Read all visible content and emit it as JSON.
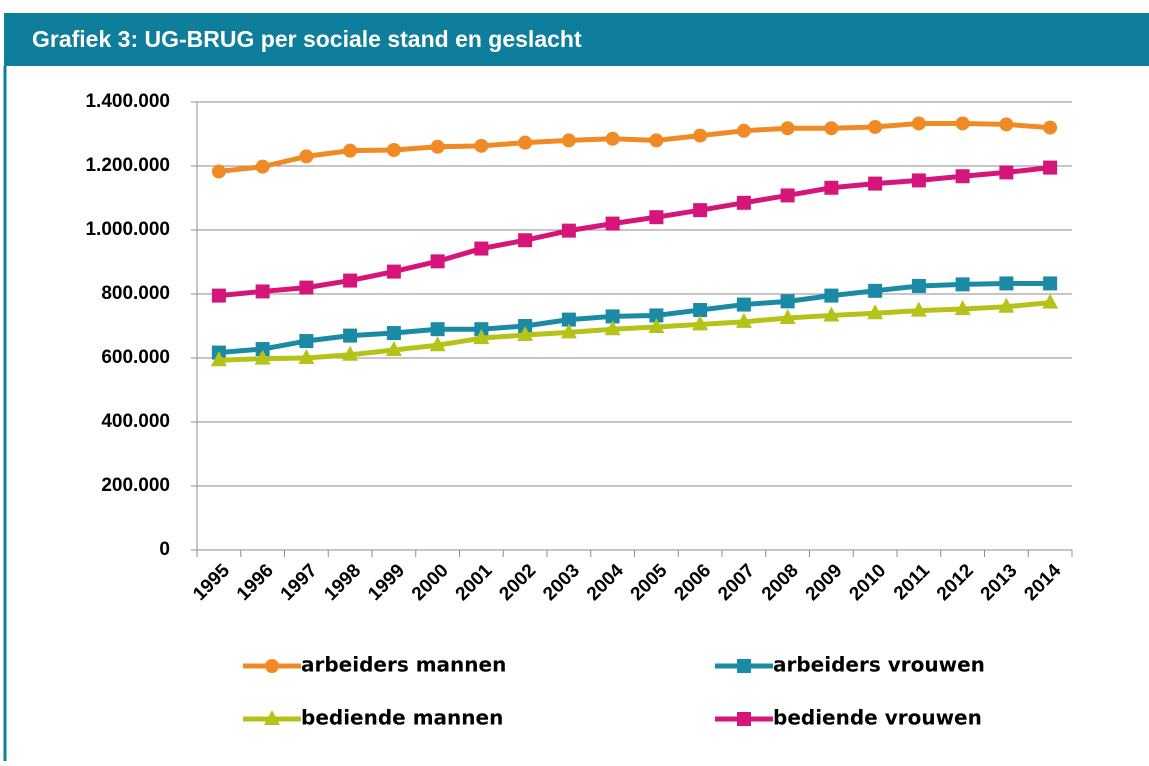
{
  "chart_data": {
    "type": "line",
    "title": "Grafiek 3: UG-BRUG per sociale stand en geslacht",
    "categories": [
      "1995",
      "1996",
      "1997",
      "1998",
      "1999",
      "2000",
      "2001",
      "2002",
      "2003",
      "2004",
      "2005",
      "2006",
      "2007",
      "2008",
      "2009",
      "2010",
      "2011",
      "2012",
      "2013",
      "2014"
    ],
    "series": [
      {
        "name": "arbeiders mannen",
        "color": "#f08a24",
        "marker": "circle",
        "values": [
          1183000,
          1198000,
          1230000,
          1248000,
          1250000,
          1260000,
          1263000,
          1273000,
          1280000,
          1285000,
          1280000,
          1295000,
          1310000,
          1318000,
          1318000,
          1322000,
          1333000,
          1333000,
          1330000,
          1320000
        ]
      },
      {
        "name": "arbeiders vrouwen",
        "color": "#1a8aa5",
        "marker": "square",
        "values": [
          617000,
          628000,
          653000,
          670000,
          678000,
          690000,
          690000,
          700000,
          720000,
          730000,
          733000,
          750000,
          767000,
          777000,
          795000,
          810000,
          825000,
          830000,
          833000,
          833000
        ]
      },
      {
        "name": "bediende mannen",
        "color": "#b5c318",
        "marker": "triangle",
        "values": [
          593000,
          598000,
          600000,
          610000,
          625000,
          640000,
          662000,
          672000,
          680000,
          690000,
          697000,
          705000,
          713000,
          725000,
          733000,
          740000,
          748000,
          753000,
          760000,
          773000
        ]
      },
      {
        "name": "bediende vrouwen",
        "color": "#d6157a",
        "marker": "square",
        "values": [
          795000,
          808000,
          820000,
          842000,
          870000,
          902000,
          942000,
          968000,
          998000,
          1020000,
          1040000,
          1062000,
          1085000,
          1108000,
          1132000,
          1145000,
          1155000,
          1168000,
          1180000,
          1195000
        ]
      }
    ],
    "ylim": [
      0,
      1400000
    ],
    "yticks": [
      0,
      {
        "value": 200000,
        "label": "200.000"
      },
      {
        "value": 400000,
        "label": "400.000"
      },
      {
        "value": 600000,
        "label": "600.000"
      },
      {
        "value": 800000,
        "label": "800.000"
      },
      {
        "value": 1000000,
        "label": "1.000.000"
      },
      {
        "value": 1200000,
        "label": "1.200.000"
      },
      {
        "value": 1400000,
        "label": "1.400.000"
      }
    ],
    "grid": true,
    "legend": "bottom"
  }
}
